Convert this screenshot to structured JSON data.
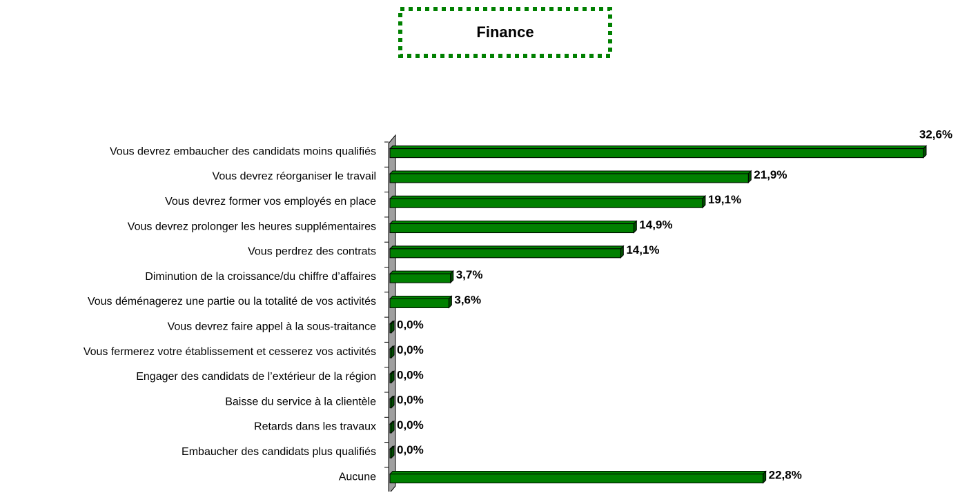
{
  "chart_data": {
    "type": "bar",
    "orientation": "horizontal",
    "title": "Finance",
    "color": "#008000",
    "categories": [
      "Vous devrez embaucher des candidats moins qualifiés",
      "Vous devrez réorganiser le travail",
      "Vous devrez former vos employés en place",
      "Vous devrez prolonger les heures supplémentaires",
      "Vous perdrez des contrats",
      "Diminution de la croissance/du chiffre d’affaires",
      "Vous déménagerez une partie ou la totalité de vos activités",
      "Vous devrez faire appel à la sous-traitance",
      "Vous fermerez votre établissement et cesserez vos activités",
      "Engager des candidats de l’extérieur de la région",
      "Baisse du service à la clientèle",
      "Retards dans les travaux",
      "Embaucher des candidats plus qualifiés",
      "Aucune"
    ],
    "values": [
      32.6,
      21.9,
      19.1,
      14.9,
      14.1,
      3.7,
      3.6,
      0,
      0,
      0,
      0,
      0,
      0,
      22.8
    ],
    "value_labels": [
      "32,6%",
      "21,9%",
      "19,1%",
      "14,9%",
      "14,1%",
      "3,7%",
      "3,6%",
      "0,0%",
      "0,0%",
      "0,0%",
      "0,0%",
      "0,0%",
      "0,0%",
      "22,8%"
    ]
  }
}
